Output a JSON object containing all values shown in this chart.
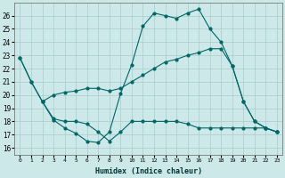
{
  "xlabel": "Humidex (Indice chaleur)",
  "bg_color": "#cce8e8",
  "grid_color": "#aacccc",
  "line_color": "#006666",
  "xlim": [
    -0.5,
    23.5
  ],
  "ylim": [
    15.5,
    27
  ],
  "yticks": [
    16,
    17,
    18,
    19,
    20,
    21,
    22,
    23,
    24,
    25,
    26
  ],
  "xticks": [
    0,
    1,
    2,
    3,
    4,
    5,
    6,
    7,
    8,
    9,
    10,
    11,
    12,
    13,
    14,
    15,
    16,
    17,
    18,
    19,
    20,
    21,
    22,
    23
  ],
  "s1x": [
    0,
    1,
    2,
    3,
    4,
    5,
    6,
    7,
    8,
    9,
    10,
    11,
    12,
    13,
    14,
    15,
    16,
    17,
    18,
    19,
    20,
    21,
    22,
    23
  ],
  "s1y": [
    22.8,
    21.0,
    19.5,
    18.1,
    17.5,
    17.1,
    16.5,
    16.4,
    17.2,
    20.1,
    22.3,
    25.2,
    26.2,
    26.0,
    25.8,
    26.2,
    26.5,
    25.0,
    24.0,
    22.2,
    19.5,
    18.0,
    17.5,
    17.2
  ],
  "s2x": [
    0,
    1,
    2,
    3,
    4,
    5,
    6,
    7,
    8,
    9,
    10,
    11,
    12,
    13,
    14,
    15,
    16,
    17,
    18,
    19,
    20,
    21,
    22,
    23
  ],
  "s2y": [
    22.8,
    21.0,
    19.5,
    20.0,
    20.2,
    20.3,
    20.5,
    20.5,
    20.3,
    20.5,
    21.0,
    21.5,
    22.0,
    22.5,
    22.7,
    23.0,
    23.2,
    23.5,
    23.5,
    22.2,
    19.5,
    18.0,
    17.5,
    17.2
  ],
  "s3x": [
    2,
    3,
    4,
    5,
    6,
    7,
    8,
    9,
    10,
    11,
    12,
    13,
    14,
    15,
    16,
    17,
    18,
    19,
    20,
    21,
    22,
    23
  ],
  "s3y": [
    19.5,
    18.2,
    18.0,
    18.0,
    17.8,
    17.2,
    16.5,
    17.2,
    18.0,
    18.0,
    18.0,
    18.0,
    18.0,
    17.8,
    17.5,
    17.5,
    17.5,
    17.5,
    17.5,
    17.5,
    17.5,
    17.2
  ]
}
